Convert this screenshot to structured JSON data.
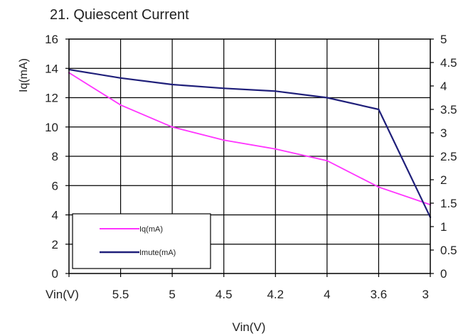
{
  "chart_data": {
    "type": "line",
    "title": "21. Quiescent Current",
    "xlabel": "Vin(V)",
    "ylabel": "Iq(mA)",
    "categories": [
      "Vin(V)",
      "5.5",
      "5",
      "4.5",
      "4.2",
      "4",
      "3.6",
      "3"
    ],
    "y_left": {
      "ticks": [
        "0",
        "2",
        "4",
        "6",
        "8",
        "10",
        "12",
        "14",
        "16"
      ],
      "range": [
        0,
        16
      ]
    },
    "y_right": {
      "ticks": [
        "0",
        "0.5",
        "1",
        "1.5",
        "2",
        "2.5",
        "3",
        "3.5",
        "4",
        "4.5",
        "5"
      ],
      "range": [
        0,
        5
      ]
    },
    "grid": true,
    "legend_position": "bottom-left",
    "series": [
      {
        "name": "Iq(mA)",
        "axis": "left",
        "color": "#ff33ff",
        "values": [
          13.7,
          11.5,
          10.0,
          9.1,
          8.5,
          7.7,
          5.9,
          4.7
        ]
      },
      {
        "name": "Imute(mA)",
        "axis": "right",
        "color": "#1f1f7a",
        "values": [
          4.35,
          4.17,
          4.03,
          3.95,
          3.89,
          3.75,
          3.5,
          1.2
        ]
      }
    ]
  }
}
